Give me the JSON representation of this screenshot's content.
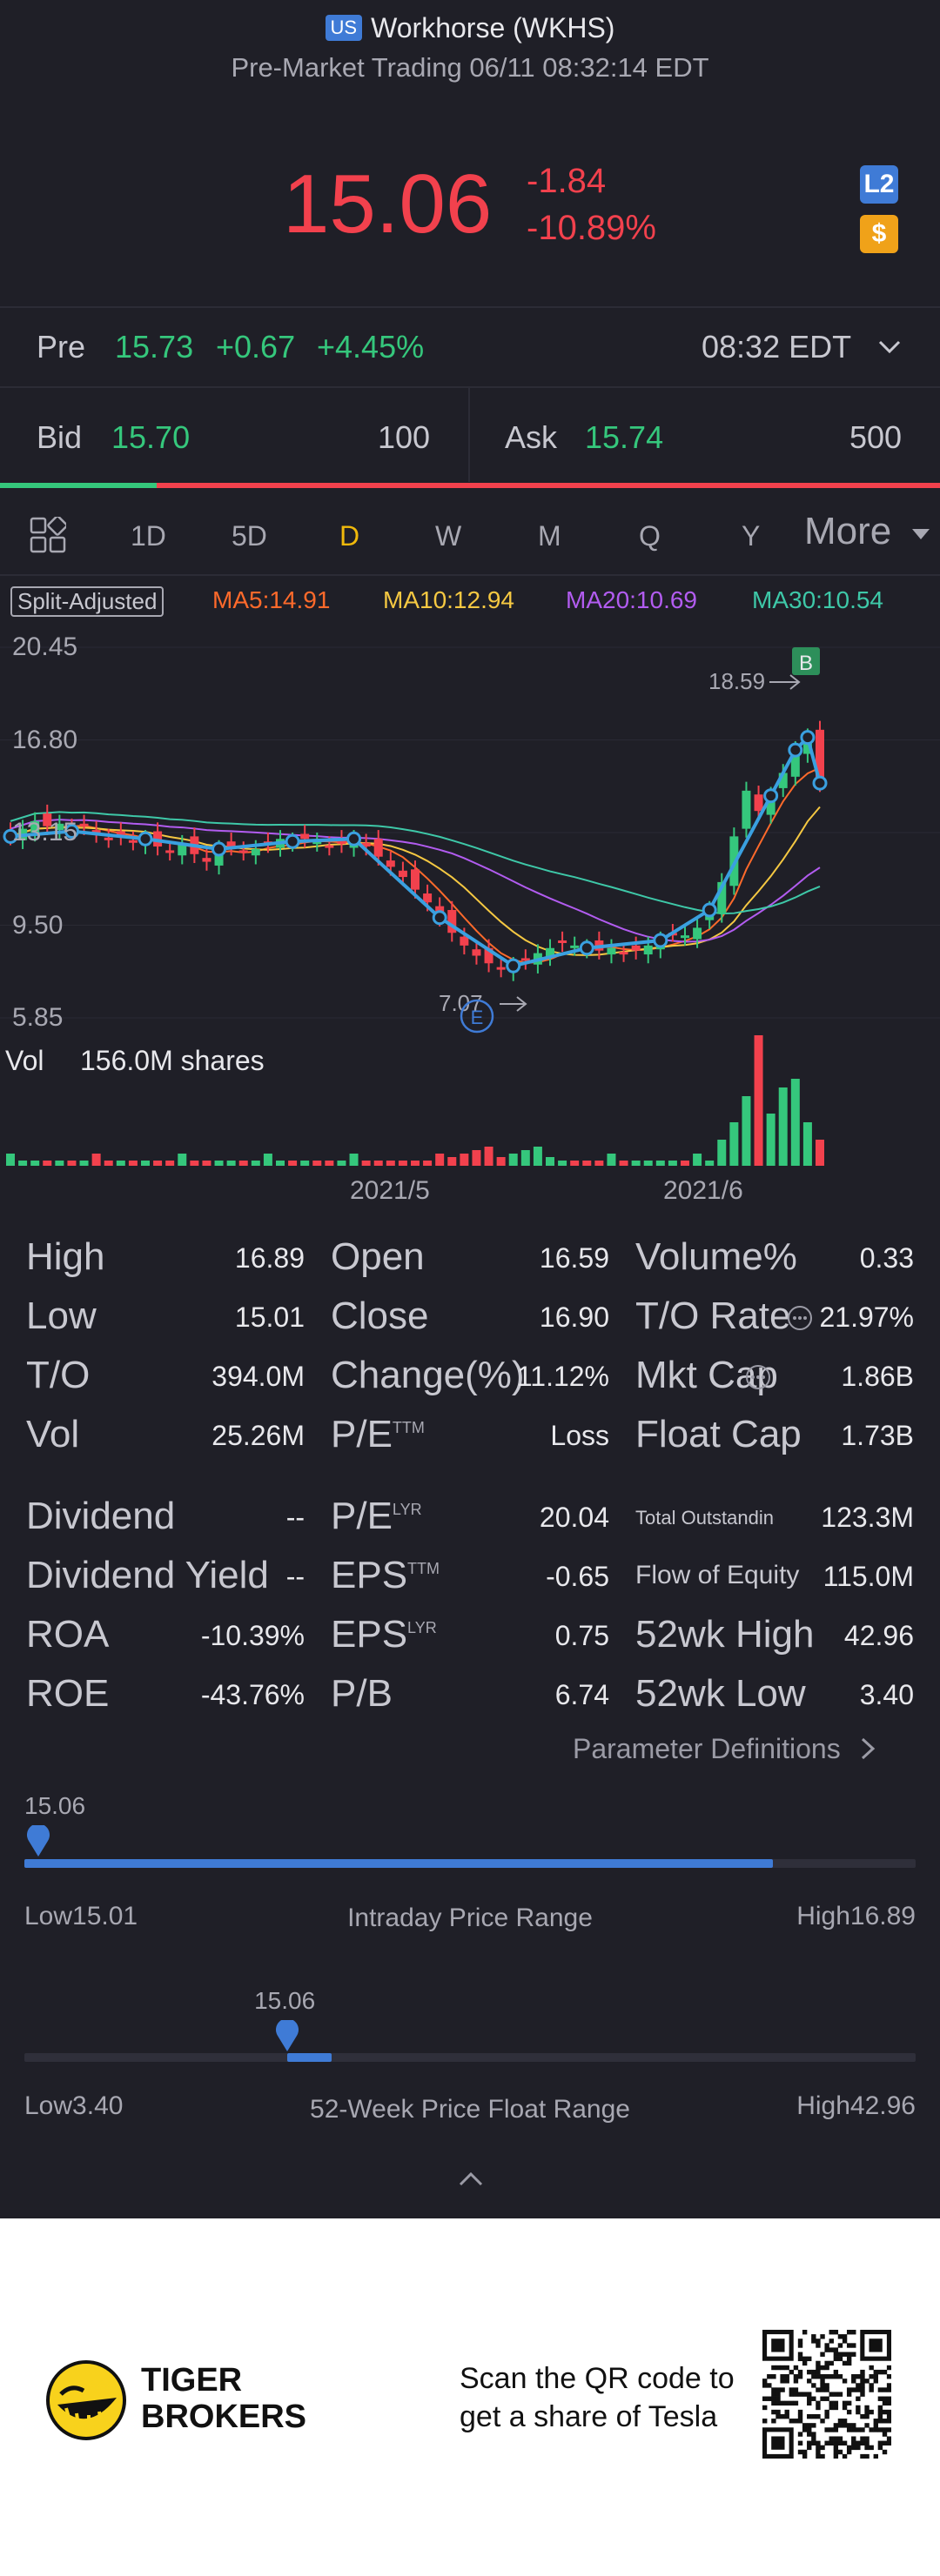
{
  "header": {
    "market_badge": "US",
    "title": "Workhorse (WKHS)",
    "subtitle": "Pre-Market Trading 06/11 08:32:14 EDT",
    "price": "15.06",
    "change": "-1.84",
    "change_pct": "-10.89%",
    "l2_badge": "L2",
    "currency_badge": "$"
  },
  "pre": {
    "label": "Pre",
    "price": "15.73",
    "change": "+0.67",
    "change_pct": "+4.45%",
    "time": "08:32 EDT"
  },
  "bidask": {
    "bid_label": "Bid",
    "bid_price": "15.70",
    "bid_size": "100",
    "ask_label": "Ask",
    "ask_price": "15.74",
    "ask_size": "500",
    "bid_ratio": 0.167
  },
  "tabs": [
    "1D",
    "5D",
    "D",
    "W",
    "M",
    "Q",
    "Y"
  ],
  "tab_more": "More",
  "active_tab": "D",
  "chart": {
    "split_adjusted": "Split-Adjusted",
    "ma5": "MA5:14.91",
    "ma10": "MA10:12.94",
    "ma20": "MA20:10.69",
    "ma30": "MA30:10.54",
    "y_ticks": [
      "20.45",
      "16.80",
      "13.15",
      "9.50",
      "5.85"
    ],
    "high_label": "18.59",
    "low_label": "7.07",
    "b_marker": "B",
    "e_marker": "E",
    "vol_label": "Vol",
    "vol_value": "156.0M shares",
    "x_ticks": [
      "2021/5",
      "2021/6"
    ],
    "colors": {
      "ma5": "#ff6a2b",
      "ma10": "#f5c842",
      "ma20": "#b25cf0",
      "ma30": "#3ec8a8",
      "up": "#35c77c",
      "down": "#f2414d",
      "trend": "#3aa0e0"
    }
  },
  "stats": {
    "col1": [
      {
        "label": "High",
        "value": "16.89"
      },
      {
        "label": "Low",
        "value": "15.01"
      },
      {
        "label": "T/O",
        "value": "394.0M"
      },
      {
        "label": "Vol",
        "value": "25.26M"
      },
      {
        "label": "Dividend",
        "value": "--"
      },
      {
        "label": "Dividend Yield",
        "value": "--"
      },
      {
        "label": "ROA",
        "value": "-10.39%"
      },
      {
        "label": "ROE",
        "value": "-43.76%"
      }
    ],
    "col2": [
      {
        "label": "Open",
        "sup": "",
        "value": "16.59"
      },
      {
        "label": "Close",
        "sup": "",
        "value": "16.90"
      },
      {
        "label": "Change(%)",
        "sup": "",
        "value": "11.12%"
      },
      {
        "label": "P/E",
        "sup": "TTM",
        "value": "Loss"
      },
      {
        "label": "P/E",
        "sup": "LYR",
        "value": "20.04"
      },
      {
        "label": "EPS",
        "sup": "TTM",
        "value": "-0.65"
      },
      {
        "label": "EPS",
        "sup": "LYR",
        "value": "0.75"
      },
      {
        "label": "P/B",
        "sup": "",
        "value": "6.74"
      }
    ],
    "col3": [
      {
        "label": "Volume%",
        "value": "0.33"
      },
      {
        "label": "T/O Rate",
        "value": "21.97%"
      },
      {
        "label": "Mkt Cap",
        "value": "1.86B"
      },
      {
        "label": "Float Cap",
        "value": "1.73B"
      },
      {
        "label": "Total Outstanding Shares",
        "value": "123.3M"
      },
      {
        "label": "Flow of Equity",
        "value": "115.0M"
      },
      {
        "label": "52wk High",
        "value": "42.96"
      },
      {
        "label": "52wk Low",
        "value": "3.40"
      }
    ],
    "param_definitions": "Parameter Definitions"
  },
  "intraday_range": {
    "current": "15.06",
    "low_label": "Low",
    "low": "15.01",
    "high_label": "High",
    "high": "16.89",
    "caption": "Intraday Price Range",
    "marker_position": 0.0,
    "fill_end": 0.84
  },
  "week52_range": {
    "current": "15.06",
    "low_label": "Low",
    "low": "3.40",
    "high_label": "High",
    "high": "42.96",
    "caption": "52-Week Price Float Range",
    "marker_position": 0.295,
    "fill_end": 0.345
  },
  "footer": {
    "brand_line1": "TIGER",
    "brand_line2": "BROKERS",
    "scan_line1": "Scan the QR code to",
    "scan_line2": "get a share of Tesla"
  }
}
